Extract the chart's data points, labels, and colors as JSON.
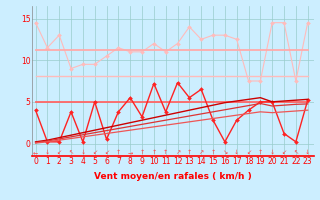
{
  "x": [
    0,
    1,
    2,
    3,
    4,
    5,
    6,
    7,
    8,
    9,
    10,
    11,
    12,
    13,
    14,
    15,
    16,
    17,
    18,
    19,
    20,
    21,
    22,
    23
  ],
  "background_color": "#cceeff",
  "xlabel": "Vent moyen/en rafales ( km/h )",
  "yticks": [
    0,
    5,
    10,
    15
  ],
  "ylim": [
    -1.5,
    16.5
  ],
  "xlim": [
    -0.3,
    23.5
  ],
  "series": [
    {
      "comment": "light pink zigzag - max values",
      "y": [
        14.5,
        11.5,
        13.0,
        9.0,
        9.5,
        9.5,
        10.5,
        11.5,
        11.0,
        11.0,
        12.0,
        11.0,
        12.0,
        14.0,
        12.5,
        13.0,
        13.0,
        12.5,
        7.5,
        7.5,
        14.5,
        14.5,
        7.5,
        14.5
      ],
      "color": "#ffbbbb",
      "lw": 0.8,
      "marker": "D",
      "ms": 2.0
    },
    {
      "comment": "horizontal light pink ~11",
      "y": [
        11.2,
        11.2,
        11.2,
        11.2,
        11.2,
        11.2,
        11.2,
        11.2,
        11.2,
        11.2,
        11.2,
        11.2,
        11.2,
        11.2,
        11.2,
        11.2,
        11.2,
        11.2,
        11.2,
        11.2,
        11.2,
        11.2,
        11.2,
        11.2
      ],
      "color": "#ffaaaa",
      "lw": 1.3,
      "marker": null,
      "ms": 0
    },
    {
      "comment": "horizontal light pink ~8",
      "y": [
        8.1,
        8.1,
        8.1,
        8.1,
        8.1,
        8.1,
        8.1,
        8.1,
        8.1,
        8.1,
        8.1,
        8.1,
        8.1,
        8.1,
        8.1,
        8.1,
        8.1,
        8.1,
        8.1,
        8.1,
        8.1,
        8.1,
        8.1,
        8.1
      ],
      "color": "#ffbbbb",
      "lw": 1.0,
      "marker": null,
      "ms": 0
    },
    {
      "comment": "horizontal red ~5",
      "y": [
        5.0,
        5.0,
        5.0,
        5.0,
        5.0,
        5.0,
        5.0,
        5.0,
        5.0,
        5.0,
        5.0,
        5.0,
        5.0,
        5.0,
        5.0,
        5.0,
        5.0,
        5.0,
        5.0,
        5.0,
        5.0,
        5.0,
        5.0,
        5.0
      ],
      "color": "#ff6666",
      "lw": 1.3,
      "marker": null,
      "ms": 0
    },
    {
      "comment": "red zigzag with markers - wind speed",
      "y": [
        4.0,
        0.2,
        0.2,
        3.8,
        0.2,
        5.0,
        0.5,
        3.8,
        5.5,
        3.2,
        7.2,
        3.8,
        7.3,
        5.5,
        6.5,
        2.8,
        0.2,
        2.8,
        4.0,
        5.0,
        5.0,
        1.2,
        0.2,
        5.2
      ],
      "color": "#ff2222",
      "lw": 1.0,
      "marker": "D",
      "ms": 2.0
    },
    {
      "comment": "diagonal line 1 - steeper",
      "y": [
        0.2,
        0.4,
        0.7,
        1.0,
        1.3,
        1.6,
        1.9,
        2.2,
        2.5,
        2.8,
        3.1,
        3.4,
        3.7,
        4.0,
        4.3,
        4.6,
        4.9,
        5.1,
        5.3,
        5.5,
        5.0,
        5.1,
        5.2,
        5.3
      ],
      "color": "#cc0000",
      "lw": 1.0,
      "marker": null,
      "ms": 0
    },
    {
      "comment": "diagonal line 2 - medium",
      "y": [
        0.1,
        0.3,
        0.55,
        0.8,
        1.05,
        1.3,
        1.55,
        1.8,
        2.05,
        2.3,
        2.55,
        2.8,
        3.05,
        3.3,
        3.55,
        3.8,
        4.05,
        4.3,
        4.55,
        4.8,
        4.5,
        4.6,
        4.7,
        4.75
      ],
      "color": "#dd3333",
      "lw": 0.9,
      "marker": null,
      "ms": 0
    },
    {
      "comment": "diagonal line 3 - shallowest",
      "y": [
        0.05,
        0.2,
        0.4,
        0.6,
        0.8,
        1.0,
        1.2,
        1.4,
        1.6,
        1.8,
        2.0,
        2.2,
        2.4,
        2.6,
        2.8,
        3.0,
        3.2,
        3.4,
        3.6,
        3.8,
        3.7,
        3.8,
        3.9,
        4.0
      ],
      "color": "#ee5555",
      "lw": 0.9,
      "marker": null,
      "ms": 0
    }
  ],
  "wind_arrows": [
    "←",
    "↓",
    "↙",
    "↖",
    "↓",
    "↙",
    "↙",
    "↑",
    "→",
    "↑",
    "↑",
    "↑",
    "↗",
    "↑",
    "↗",
    "↑",
    "↘",
    "↓",
    "↙",
    "↑",
    "↓",
    "↙",
    "↖",
    "↓"
  ],
  "tick_fontsize": 5.5,
  "label_fontsize": 6.5
}
